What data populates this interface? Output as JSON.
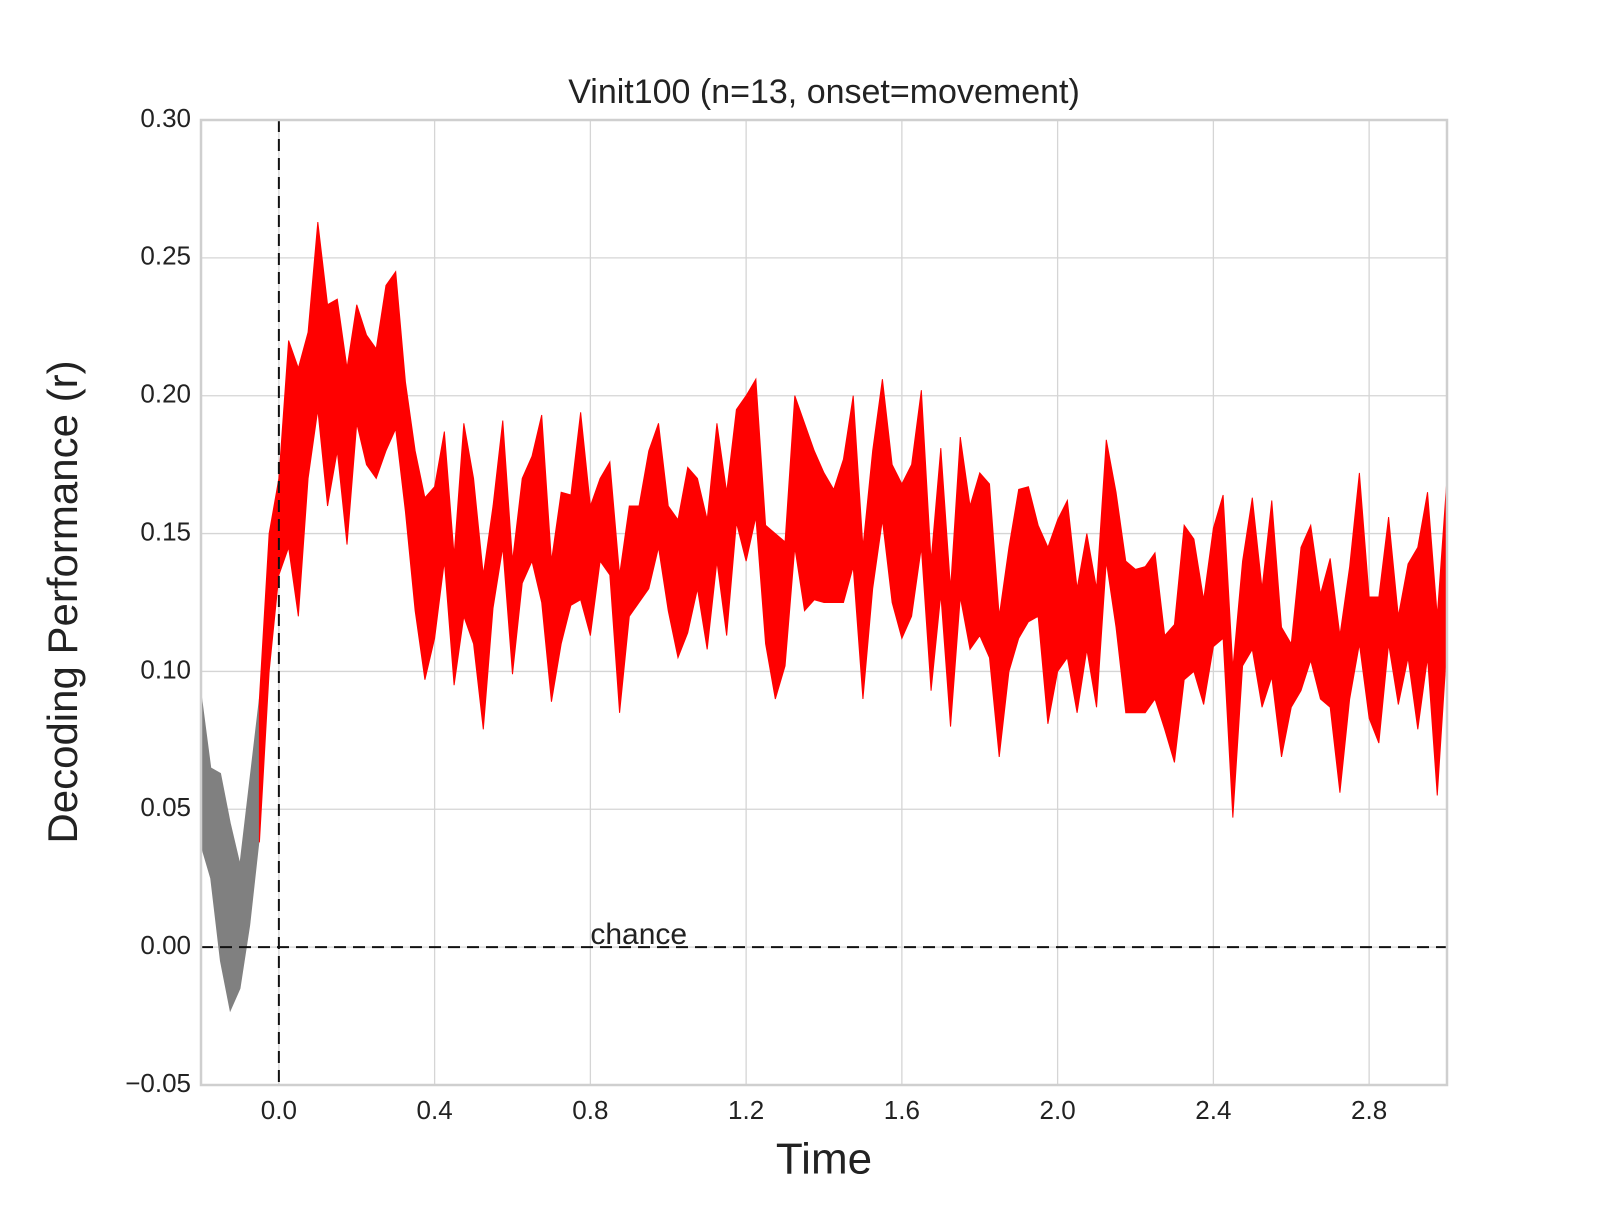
{
  "chart_data": {
    "type": "area",
    "title": "Vinit100 (n=13, onset=movement)",
    "xlabel": "Time",
    "ylabel": "Decoding Performance (r)",
    "xlim": [
      -0.2,
      3.0
    ],
    "ylim": [
      -0.05,
      0.3
    ],
    "xticks": [
      {
        "value": 0,
        "label": "0.0"
      },
      0.4,
      0.8,
      1.2,
      1.6,
      {
        "value": 2,
        "label": "2.0"
      },
      2.4,
      2.8
    ],
    "yticks": [
      {
        "value": -0.05,
        "label": "−0.05"
      },
      {
        "value": 0,
        "label": "0.00"
      },
      0.05,
      {
        "value": 0.1,
        "label": "0.10"
      },
      0.15,
      {
        "value": 0.2,
        "label": "0.20"
      },
      0.25,
      {
        "value": 0.3,
        "label": "0.30"
      }
    ],
    "grid": true,
    "hline": 0,
    "vline": 0,
    "annotation": {
      "text": "chance",
      "x": 0.8,
      "y": 0
    },
    "series": [
      {
        "color": "#808080",
        "x": [
          -0.2,
          -0.175,
          -0.15,
          -0.125,
          -0.1,
          -0.075,
          -0.05
        ],
        "upper": [
          0.092,
          0.065,
          0.063,
          0.045,
          0.03,
          0.06,
          0.09
        ],
        "lower": [
          0.037,
          0.025,
          -0.005,
          -0.023,
          -0.015,
          0.008,
          0.04
        ]
      },
      {
        "color": "#ff0000",
        "x": [
          -0.05,
          -0.025,
          0,
          0.025,
          0.05,
          0.075,
          0.1,
          0.125,
          0.15,
          0.175,
          0.2,
          0.225,
          0.25,
          0.275,
          0.3,
          0.325,
          0.35,
          0.375,
          0.4,
          0.425,
          0.45,
          0.475,
          0.5,
          0.525,
          0.55,
          0.575,
          0.6,
          0.625,
          0.65,
          0.675,
          0.7,
          0.725,
          0.75,
          0.775,
          0.8,
          0.825,
          0.85,
          0.875,
          0.9,
          0.925,
          0.95,
          0.975,
          1.0,
          1.025,
          1.05,
          1.075,
          1.1,
          1.125,
          1.15,
          1.175,
          1.2,
          1.225,
          1.25,
          1.275,
          1.3,
          1.325,
          1.35,
          1.375,
          1.4,
          1.425,
          1.45,
          1.475,
          1.5,
          1.525,
          1.55,
          1.575,
          1.6,
          1.625,
          1.65,
          1.675,
          1.7,
          1.725,
          1.75,
          1.775,
          1.8,
          1.825,
          1.85,
          1.875,
          1.9,
          1.925,
          1.95,
          1.975,
          2.0,
          2.025,
          2.05,
          2.075,
          2.1,
          2.125,
          2.15,
          2.175,
          2.2,
          2.225,
          2.25,
          2.275,
          2.3,
          2.325,
          2.35,
          2.375,
          2.4,
          2.425,
          2.45,
          2.475,
          2.5,
          2.525,
          2.55,
          2.575,
          2.6,
          2.625,
          2.65,
          2.675,
          2.7,
          2.725,
          2.75,
          2.775,
          2.8,
          2.825,
          2.85,
          2.875,
          2.9,
          2.925,
          2.95,
          2.975,
          3.0
        ],
        "upper": [
          0.09,
          0.15,
          0.17,
          0.22,
          0.21,
          0.223,
          0.263,
          0.233,
          0.235,
          0.21,
          0.233,
          0.222,
          0.217,
          0.24,
          0.245,
          0.205,
          0.18,
          0.163,
          0.167,
          0.187,
          0.142,
          0.19,
          0.17,
          0.135,
          0.16,
          0.191,
          0.14,
          0.17,
          0.178,
          0.193,
          0.14,
          0.165,
          0.164,
          0.194,
          0.16,
          0.17,
          0.176,
          0.135,
          0.16,
          0.16,
          0.18,
          0.19,
          0.16,
          0.155,
          0.174,
          0.17,
          0.155,
          0.19,
          0.165,
          0.195,
          0.2,
          0.206,
          0.153,
          0.15,
          0.147,
          0.2,
          0.19,
          0.18,
          0.172,
          0.166,
          0.177,
          0.2,
          0.145,
          0.18,
          0.206,
          0.175,
          0.168,
          0.175,
          0.202,
          0.14,
          0.181,
          0.13,
          0.185,
          0.16,
          0.172,
          0.168,
          0.12,
          0.145,
          0.166,
          0.167,
          0.153,
          0.145,
          0.155,
          0.162,
          0.13,
          0.15,
          0.13,
          0.184,
          0.165,
          0.14,
          0.137,
          0.138,
          0.143,
          0.113,
          0.117,
          0.153,
          0.148,
          0.126,
          0.152,
          0.164,
          0.101,
          0.14,
          0.163,
          0.13,
          0.162,
          0.116,
          0.11,
          0.145,
          0.153,
          0.128,
          0.141,
          0.113,
          0.138,
          0.172,
          0.127,
          0.127,
          0.156,
          0.12,
          0.139,
          0.145,
          0.165,
          0.12,
          0.17
        ],
        "lower": [
          0.038,
          0.1,
          0.135,
          0.145,
          0.12,
          0.17,
          0.195,
          0.16,
          0.18,
          0.146,
          0.19,
          0.175,
          0.17,
          0.18,
          0.188,
          0.158,
          0.122,
          0.097,
          0.112,
          0.14,
          0.095,
          0.12,
          0.11,
          0.079,
          0.123,
          0.145,
          0.099,
          0.132,
          0.14,
          0.125,
          0.089,
          0.11,
          0.124,
          0.126,
          0.113,
          0.14,
          0.135,
          0.085,
          0.12,
          0.125,
          0.13,
          0.145,
          0.122,
          0.105,
          0.114,
          0.13,
          0.108,
          0.14,
          0.113,
          0.154,
          0.14,
          0.156,
          0.11,
          0.09,
          0.102,
          0.145,
          0.122,
          0.126,
          0.125,
          0.125,
          0.125,
          0.138,
          0.09,
          0.13,
          0.155,
          0.125,
          0.112,
          0.12,
          0.145,
          0.093,
          0.128,
          0.08,
          0.127,
          0.108,
          0.113,
          0.105,
          0.069,
          0.1,
          0.112,
          0.118,
          0.12,
          0.081,
          0.1,
          0.105,
          0.085,
          0.108,
          0.087,
          0.14,
          0.116,
          0.085,
          0.085,
          0.085,
          0.09,
          0.079,
          0.067,
          0.097,
          0.1,
          0.088,
          0.109,
          0.112,
          0.047,
          0.102,
          0.108,
          0.087,
          0.098,
          0.069,
          0.087,
          0.093,
          0.104,
          0.09,
          0.087,
          0.056,
          0.09,
          0.11,
          0.083,
          0.074,
          0.11,
          0.088,
          0.105,
          0.079,
          0.105,
          0.055,
          0.11
        ]
      }
    ]
  }
}
